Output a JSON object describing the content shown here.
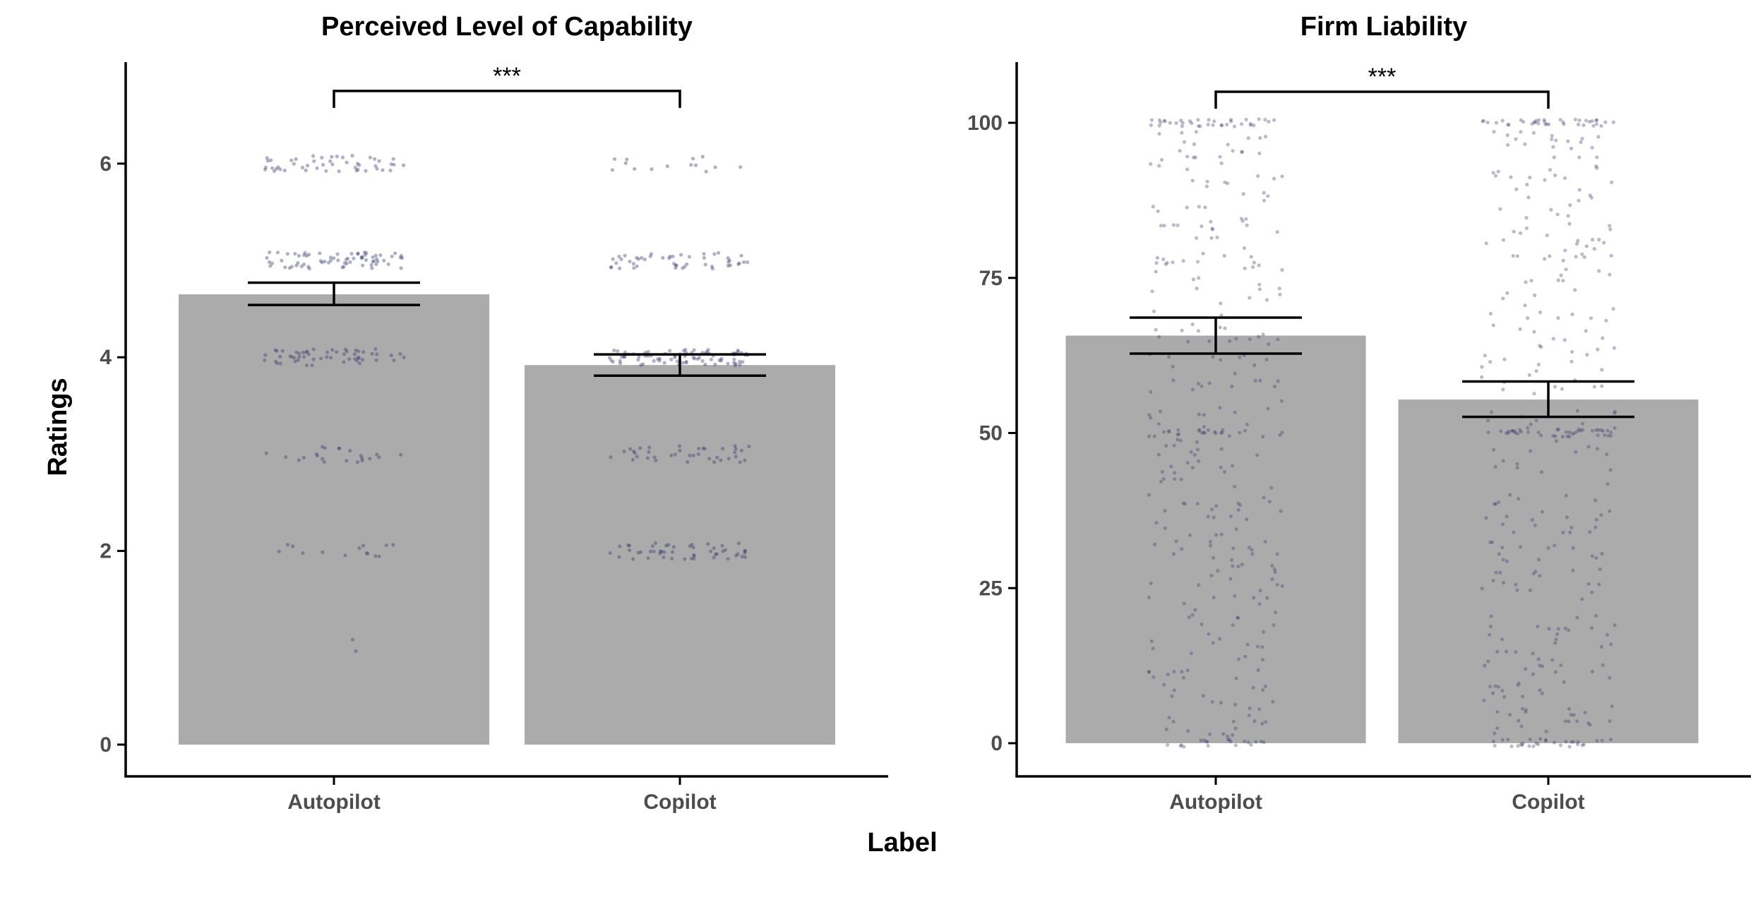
{
  "chart_data": [
    {
      "type": "bar",
      "title": "Perceived Level of Capability",
      "xlabel": "Label",
      "ylabel": "Ratings",
      "categories": [
        "Autopilot",
        "Copilot"
      ],
      "values": [
        4.65,
        3.92
      ],
      "error_low": [
        4.54,
        3.81
      ],
      "error_high": [
        4.77,
        4.03
      ],
      "ylim": [
        -0.3,
        7.1
      ],
      "yticks": [
        0,
        2,
        4,
        6
      ],
      "significance": {
        "between": [
          "Autopilot",
          "Copilot"
        ],
        "label": "***",
        "y": 6.75
      },
      "bar_color": "#ababab",
      "jitter_color": "#3d3a6b",
      "jitter_levels": [
        1,
        2,
        3,
        4,
        5,
        6
      ],
      "jitter_counts": [
        [
          2,
          14,
          22,
          55,
          70,
          48
        ],
        [
          0,
          50,
          38,
          80,
          48,
          14
        ]
      ]
    },
    {
      "type": "bar",
      "title": "Firm Liability",
      "xlabel": "Label",
      "ylabel": "Ratings",
      "categories": [
        "Autopilot",
        "Copilot"
      ],
      "values": [
        65.7,
        55.4
      ],
      "error_low": [
        62.8,
        52.6
      ],
      "error_high": [
        68.6,
        58.3
      ],
      "ylim": [
        -5,
        105
      ],
      "yticks": [
        0,
        25,
        50,
        75,
        100
      ],
      "significance": {
        "between": [
          "Autopilot",
          "Copilot"
        ],
        "label": "***",
        "y": 105
      },
      "bar_color": "#ababab",
      "jitter_color": "#3d3a6b",
      "jitter_range": [
        0,
        100
      ],
      "jitter_counts": [
        360,
        380
      ]
    }
  ]
}
